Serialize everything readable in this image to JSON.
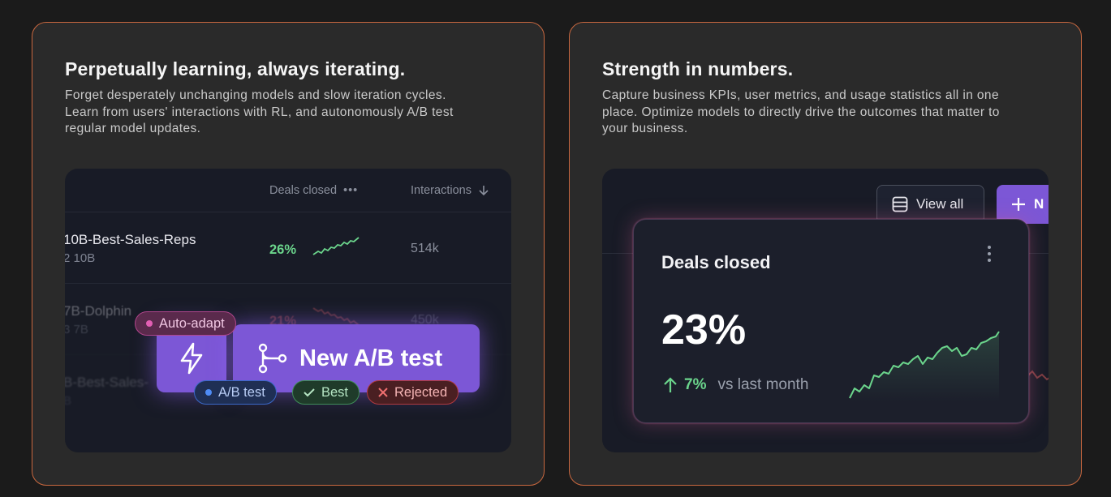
{
  "left_card": {
    "title": "Perpetually learning, always iterating.",
    "description": "Forget desperately unchanging models and slow iteration cycles. Learn from users' interactions with RL, and autonomously A/B test regular model updates.",
    "table": {
      "col_deals": "Deals closed",
      "col_interactions": "Interactions",
      "rows": [
        {
          "name": "10B-Best-Sales-Reps",
          "sub": "2 10B",
          "pct": "26%",
          "interactions": "514k",
          "trend": "up"
        },
        {
          "name": "7B-Dolphin",
          "sub": "3 7B",
          "pct": "21%",
          "interactions": "450k",
          "trend": "down"
        },
        {
          "name": "B-Best-Sales-",
          "sub": "B",
          "pct": "",
          "interactions": "",
          "trend": "none"
        }
      ]
    },
    "overlay": {
      "new_ab_label": "New A/B test",
      "chip_auto": "Auto-adapt",
      "chip_ab": "A/B test",
      "chip_best": "Best",
      "chip_rejected": "Rejected"
    }
  },
  "right_card": {
    "title": "Strength in numbers.",
    "description": "Capture business KPIs, user metrics, and usage statistics all in one place. Optimize models to directly drive the outcomes that matter to your business.",
    "view_all_label": "View all",
    "new_label": "N",
    "metric": {
      "title": "Deals closed",
      "value": "23%",
      "change": "7%",
      "change_suffix": "vs last month"
    }
  },
  "colors": {
    "accent": "#7c57d6",
    "card_border": "#c9683f",
    "positive": "#6bd58c",
    "negative": "#e0605c"
  }
}
